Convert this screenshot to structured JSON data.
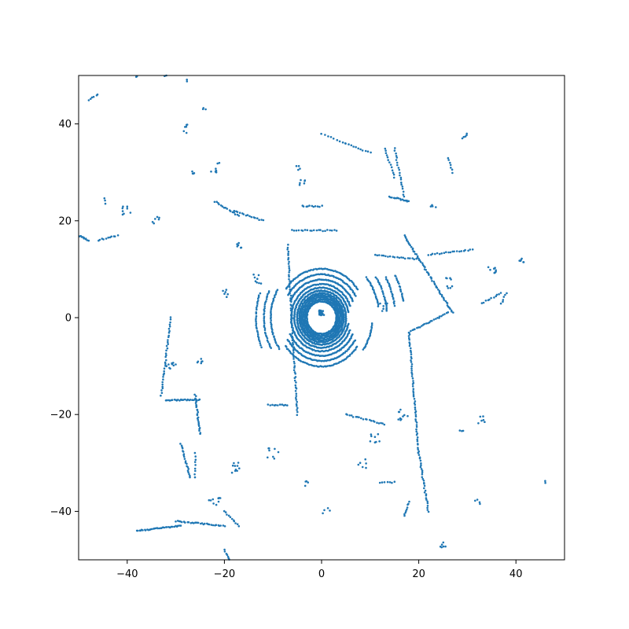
{
  "chart_data": {
    "type": "scatter",
    "title": "",
    "xlabel": "",
    "ylabel": "",
    "xlim": [
      -50,
      50
    ],
    "ylim": [
      -50,
      50
    ],
    "grid": false,
    "legend": "none",
    "marker_color": "#1f77b4",
    "xticks": [
      -40,
      -20,
      0,
      20,
      40
    ],
    "yticks": [
      -40,
      -20,
      0,
      20,
      40
    ],
    "xtick_labels": [
      "−40",
      "−20",
      "0",
      "20",
      "40"
    ],
    "ytick_labels": [
      "−40",
      "−20",
      "0",
      "20",
      "40"
    ],
    "series": [
      {
        "rings": [
          {
            "r": 3.2,
            "a0": 0,
            "a1": 360,
            "n": 130
          },
          {
            "r": 3.6,
            "a0": 0,
            "a1": 360,
            "n": 140
          },
          {
            "r": 4.0,
            "a0": 0,
            "a1": 360,
            "n": 150
          },
          {
            "r": 4.4,
            "a0": 0,
            "a1": 360,
            "n": 160
          },
          {
            "r": 4.8,
            "a0": 0,
            "a1": 360,
            "n": 165
          },
          {
            "r": 5.3,
            "a0": 0,
            "a1": 360,
            "n": 170
          },
          {
            "r": 5.9,
            "a0": 10,
            "a1": 350,
            "n": 150
          },
          {
            "r": 6.6,
            "a0": 20,
            "a1": 340,
            "n": 140
          },
          {
            "r": 7.5,
            "a0": 25,
            "a1": 155,
            "n": 70
          },
          {
            "r": 7.5,
            "a0": 205,
            "a1": 335,
            "n": 70
          },
          {
            "r": 8.5,
            "a0": 30,
            "a1": 150,
            "n": 65
          },
          {
            "r": 8.5,
            "a0": 210,
            "a1": 330,
            "n": 65
          },
          {
            "r": 9.6,
            "a0": 35,
            "a1": 145,
            "n": 60
          },
          {
            "r": 9.6,
            "a0": 215,
            "a1": 325,
            "n": 60
          },
          {
            "r": 11.0,
            "a0": 150,
            "a1": 215,
            "n": 40
          },
          {
            "r": 11.0,
            "a0": 325,
            "a1": 355,
            "n": 20
          },
          {
            "r": 12.5,
            "a0": 155,
            "a1": 210,
            "n": 35
          },
          {
            "r": 12.5,
            "a0": 10,
            "a1": 40,
            "n": 22
          },
          {
            "r": 14.2,
            "a0": 160,
            "a1": 205,
            "n": 30
          },
          {
            "r": 14.2,
            "a0": 5,
            "a1": 35,
            "n": 22
          },
          {
            "r": 16.0,
            "a0": 8,
            "a1": 30,
            "n": 20
          },
          {
            "r": 18.0,
            "a0": 10,
            "a1": 28,
            "n": 18
          }
        ],
        "segments": [
          {
            "x1": -7,
            "y1": 15,
            "x2": -5,
            "y2": -20,
            "n": 80
          },
          {
            "x1": 18,
            "y1": -3,
            "x2": 20,
            "y2": -28,
            "n": 60
          },
          {
            "x1": 20,
            "y1": -28,
            "x2": 22,
            "y2": -40,
            "n": 30
          },
          {
            "x1": 18,
            "y1": -3,
            "x2": 26,
            "y2": 1,
            "n": 25
          },
          {
            "x1": 17,
            "y1": 17,
            "x2": 27,
            "y2": 1,
            "n": 60
          },
          {
            "x1": 14,
            "y1": 25,
            "x2": 18,
            "y2": 24,
            "n": 15
          },
          {
            "x1": 5,
            "y1": 36,
            "x2": 10,
            "y2": 34,
            "n": 10
          },
          {
            "x1": 13,
            "y1": 35,
            "x2": 15,
            "y2": 29,
            "n": 12
          },
          {
            "x1": 15,
            "y1": 35,
            "x2": 17,
            "y2": 25,
            "n": 20
          },
          {
            "x1": -26,
            "y1": -16,
            "x2": -25,
            "y2": -24,
            "n": 25
          },
          {
            "x1": -32,
            "y1": -17,
            "x2": -25,
            "y2": -17,
            "n": 25
          },
          {
            "x1": -29,
            "y1": -26,
            "x2": -27,
            "y2": -33,
            "n": 20
          },
          {
            "x1": -31,
            "y1": 0,
            "x2": -33,
            "y2": -16,
            "n": 35
          },
          {
            "x1": -38,
            "y1": -44,
            "x2": -29,
            "y2": -43,
            "n": 35
          },
          {
            "x1": -30,
            "y1": -42,
            "x2": -20,
            "y2": -43,
            "n": 30
          },
          {
            "x1": -20,
            "y1": -48,
            "x2": -19,
            "y2": -50,
            "n": 6
          },
          {
            "x1": -50,
            "y1": 17,
            "x2": -48,
            "y2": 16,
            "n": 10
          },
          {
            "x1": -46,
            "y1": 16,
            "x2": -42,
            "y2": 17,
            "n": 10
          },
          {
            "x1": -48,
            "y1": 45,
            "x2": -46,
            "y2": 46,
            "n": 5
          },
          {
            "x1": -22,
            "y1": 24,
            "x2": -17,
            "y2": 21,
            "n": 15
          },
          {
            "x1": -18,
            "y1": 22,
            "x2": -12,
            "y2": 20,
            "n": 15
          },
          {
            "x1": -6,
            "y1": 18,
            "x2": 3,
            "y2": 18,
            "n": 20
          },
          {
            "x1": -4,
            "y1": 23,
            "x2": 0,
            "y2": 23,
            "n": 10
          },
          {
            "x1": 11,
            "y1": 13,
            "x2": 20,
            "y2": 12,
            "n": 20
          },
          {
            "x1": 22,
            "y1": 13,
            "x2": 31,
            "y2": 14,
            "n": 20
          },
          {
            "x1": 5,
            "y1": -20,
            "x2": 13,
            "y2": -22,
            "n": 20
          },
          {
            "x1": 12,
            "y1": -34,
            "x2": 15,
            "y2": -34,
            "n": 6
          },
          {
            "x1": -11,
            "y1": -18,
            "x2": -7,
            "y2": -18,
            "n": 10
          },
          {
            "x1": -20,
            "y1": -40,
            "x2": -17,
            "y2": -43,
            "n": 10
          },
          {
            "x1": 18,
            "y1": -38,
            "x2": 17,
            "y2": -41,
            "n": 8
          },
          {
            "x1": 30,
            "y1": 38,
            "x2": 29,
            "y2": 37,
            "n": 4
          },
          {
            "x1": 26,
            "y1": 33,
            "x2": 27,
            "y2": 30,
            "n": 6
          },
          {
            "x1": 33,
            "y1": 3,
            "x2": 37,
            "y2": 5,
            "n": 10
          },
          {
            "x1": 38,
            "y1": 5,
            "x2": 37,
            "y2": 3,
            "n": 5
          },
          {
            "x1": -26,
            "y1": -28,
            "x2": -26,
            "y2": -33,
            "n": 8
          },
          {
            "x1": 0,
            "y1": 38,
            "x2": 5,
            "y2": 36,
            "n": 8
          }
        ],
        "clusters": [
          {
            "x": -31,
            "y": -10,
            "n": 10,
            "s": 1.0
          },
          {
            "x": -25,
            "y": -9,
            "n": 6,
            "s": 0.6
          },
          {
            "x": -40,
            "y": 22,
            "n": 8,
            "s": 1.0
          },
          {
            "x": -34,
            "y": 20,
            "n": 6,
            "s": 0.8
          },
          {
            "x": -20,
            "y": 5,
            "n": 6,
            "s": 0.8
          },
          {
            "x": -13,
            "y": 8,
            "n": 8,
            "s": 1.0
          },
          {
            "x": -17,
            "y": 15,
            "n": 6,
            "s": 0.6
          },
          {
            "x": -28,
            "y": 39,
            "n": 6,
            "s": 1.0
          },
          {
            "x": -22,
            "y": 31,
            "n": 8,
            "s": 1.2
          },
          {
            "x": -10,
            "y": -28,
            "n": 8,
            "s": 1.2
          },
          {
            "x": -18,
            "y": -31,
            "n": 10,
            "s": 1.2
          },
          {
            "x": -22,
            "y": -38,
            "n": 10,
            "s": 1.2
          },
          {
            "x": 1,
            "y": -40,
            "n": 4,
            "s": 0.8
          },
          {
            "x": 17,
            "y": -20,
            "n": 10,
            "s": 1.2
          },
          {
            "x": 25,
            "y": -47,
            "n": 6,
            "s": 0.6
          },
          {
            "x": 32,
            "y": -38,
            "n": 4,
            "s": 0.6
          },
          {
            "x": 33,
            "y": -21,
            "n": 6,
            "s": 0.8
          },
          {
            "x": 29,
            "y": -23,
            "n": 3,
            "s": 0.6
          },
          {
            "x": 26,
            "y": 7,
            "n": 8,
            "s": 1.2
          },
          {
            "x": 35,
            "y": 10,
            "n": 8,
            "s": 1.0
          },
          {
            "x": 41,
            "y": 12,
            "n": 6,
            "s": 0.6
          },
          {
            "x": 46,
            "y": -34,
            "n": 2,
            "s": 0.3
          },
          {
            "x": -4,
            "y": 28,
            "n": 6,
            "s": 0.6
          },
          {
            "x": -5,
            "y": 31,
            "n": 4,
            "s": 0.6
          },
          {
            "x": -26,
            "y": 30,
            "n": 4,
            "s": 0.8
          },
          {
            "x": -45,
            "y": 24,
            "n": 3,
            "s": 0.8
          },
          {
            "x": 23,
            "y": 23,
            "n": 4,
            "s": 0.6
          },
          {
            "x": 8,
            "y": -30,
            "n": 6,
            "s": 1.2
          },
          {
            "x": 11,
            "y": -25,
            "n": 8,
            "s": 1.0
          },
          {
            "x": -3,
            "y": -34,
            "n": 4,
            "s": 0.8
          },
          {
            "x": 0,
            "y": 1,
            "n": 30,
            "s": 0.5
          },
          {
            "x": 13,
            "y": 2,
            "n": 6,
            "s": 1.0
          },
          {
            "x": -38,
            "y": 50,
            "n": 2,
            "s": 0.3
          },
          {
            "x": -32,
            "y": 50,
            "n": 2,
            "s": 0.3
          },
          {
            "x": -28,
            "y": 49,
            "n": 2,
            "s": 0.3
          },
          {
            "x": -24,
            "y": 43,
            "n": 3,
            "s": 0.5
          }
        ]
      }
    ]
  }
}
